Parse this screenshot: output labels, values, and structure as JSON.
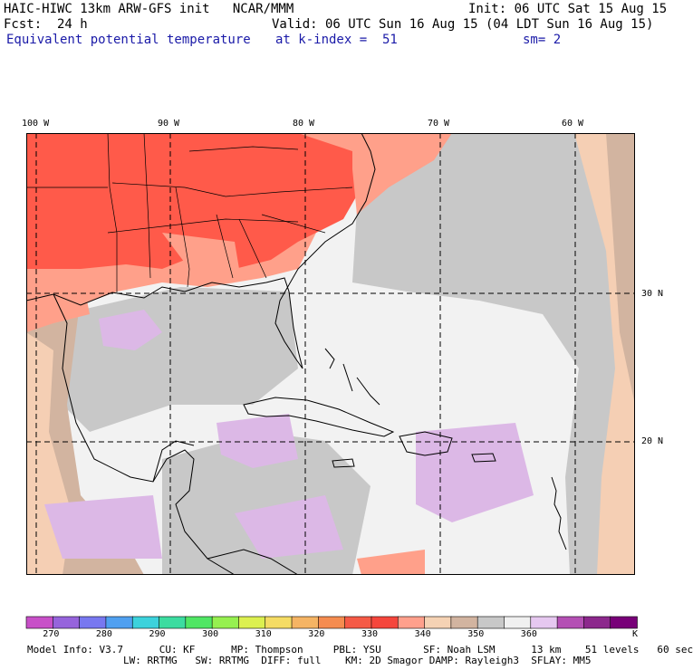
{
  "header": {
    "line1_left": "HAIC-HIWC 13km ARW-GFS init   NCAR/MMM",
    "line1_right": "Init: 06 UTC Sat 15 Aug 15",
    "line2_left": "Fcst:  24 h",
    "line2_right": "Valid: 06 UTC Sun 16 Aug 15 (04 LDT Sun 16 Aug 15)",
    "field_name": "Equivalent potential temperature",
    "level": "at k-index =  51",
    "smoothing": "sm= 2"
  },
  "map": {
    "longitude_labels": [
      "100 W",
      "90 W",
      "80 W",
      "70 W",
      "60 W"
    ],
    "latitude_labels": [
      "30 N",
      "20 N"
    ],
    "colors": {
      "hot_red": "#ff5a4a",
      "warm_salmon": "#ffa08a",
      "peach": "#f5cfb4",
      "tan": "#d2b4a0",
      "gray": "#c8c8c8",
      "light_gray": "#ebebeb",
      "lavender": "#dcb8e6",
      "ocean_white": "#f2f2f2"
    }
  },
  "colorbar": {
    "colors": [
      "#c850c8",
      "#9664dc",
      "#7878f0",
      "#50a0f0",
      "#3cd2dc",
      "#3cdca0",
      "#50e664",
      "#96f050",
      "#dcf050",
      "#f5dc64",
      "#f5b464",
      "#f58c50",
      "#f55a46",
      "#f5463c",
      "#ffa08c",
      "#f5d2b4",
      "#d2b4a0",
      "#c8c8c8",
      "#f0f0f0",
      "#e6c8f0",
      "#b450b4",
      "#8c288c",
      "#780078"
    ],
    "tick_labels": [
      "270",
      "280",
      "290",
      "300",
      "310",
      "320",
      "330",
      "340",
      "350",
      "360"
    ],
    "unit": "K"
  },
  "model_info": {
    "line1": "Model Info: V3.7      CU: KF      MP: Thompson     PBL: YSU       SF: Noah LSM      13 km    51 levels   60 sec",
    "line2": "                LW: RRTMG   SW: RRTMG  DIFF: full    KM: 2D Smagor DAMP: Rayleigh3  SFLAY: MM5"
  }
}
